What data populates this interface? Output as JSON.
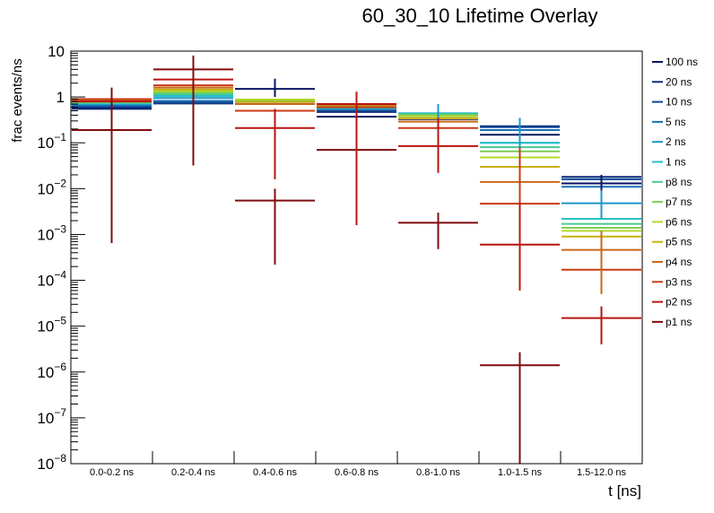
{
  "chart_data": {
    "type": "line",
    "title": "60_30_10 Lifetime Overlay",
    "xlabel": "t [ns]",
    "ylabel": "frac events/ns",
    "yscale": "log",
    "ylim": [
      1e-08,
      10
    ],
    "yticks": [
      {
        "base": "10",
        "exp": "-8",
        "v": 1e-08
      },
      {
        "base": "10",
        "exp": "-7",
        "v": 1e-07
      },
      {
        "base": "10",
        "exp": "-6",
        "v": 1e-06
      },
      {
        "base": "10",
        "exp": "-5",
        "v": 1e-05
      },
      {
        "base": "10",
        "exp": "-4",
        "v": 0.0001
      },
      {
        "base": "10",
        "exp": "-3",
        "v": 0.001
      },
      {
        "base": "10",
        "exp": "-2",
        "v": 0.01
      },
      {
        "base": "10",
        "exp": "-1",
        "v": 0.1
      },
      {
        "base": "1",
        "exp": "",
        "v": 1
      },
      {
        "base": "10",
        "exp": "",
        "v": 10
      }
    ],
    "categories": [
      "0.0-0.2 ns",
      "0.2-0.4 ns",
      "0.4-0.6 ns",
      "0.6-0.8 ns",
      "0.8-1.0 ns",
      "1.0-1.5 ns",
      "1.5-12.0 ns"
    ],
    "legend_position": "right",
    "series": [
      {
        "name": "100 ns",
        "color": "#0a1560",
        "values": [
          0.58,
          0.78,
          1.5,
          0.37,
          0.33,
          0.15,
          0.013
        ],
        "errors": [
          [
            0.58,
            0.58
          ],
          [
            0.78,
            0.78
          ],
          [
            1.5,
            2.5
          ],
          [
            0.37,
            0.37
          ],
          [
            0.33,
            0.33
          ],
          [
            0.15,
            0.15
          ],
          [
            0.013,
            0.013
          ]
        ]
      },
      {
        "name": "20 ns",
        "color": "#0d2a7a",
        "values": [
          0.55,
          0.72,
          0.78,
          0.47,
          0.38,
          0.23,
          0.018
        ],
        "errors": []
      },
      {
        "name": "10 ns",
        "color": "#0e4a96",
        "values": [
          0.62,
          0.75,
          0.8,
          0.5,
          0.4,
          0.22,
          0.016
        ],
        "errors": []
      },
      {
        "name": "5 ns",
        "color": "#1771b8",
        "values": [
          0.65,
          0.82,
          0.8,
          0.55,
          0.42,
          0.19,
          0.011
        ],
        "errors": []
      },
      {
        "name": "2 ns",
        "color": "#1a98c8",
        "values": [
          0.7,
          0.95,
          0.82,
          0.56,
          0.44,
          0.1,
          0.0048
        ],
        "errors": []
      },
      {
        "name": "1 ns",
        "color": "#25c0c8",
        "values": [
          0.72,
          1.05,
          0.83,
          0.58,
          0.44,
          0.1,
          0.0022
        ],
        "errors": []
      },
      {
        "name": "p8 ns",
        "color": "#4cc890",
        "values": [
          0.75,
          1.15,
          0.84,
          0.6,
          0.42,
          0.08,
          0.0017
        ],
        "errors": []
      },
      {
        "name": "p7 ns",
        "color": "#7ccc58",
        "values": [
          0.78,
          1.25,
          0.86,
          0.62,
          0.4,
          0.065,
          0.0014
        ],
        "errors": []
      },
      {
        "name": "p6 ns",
        "color": "#b0d828",
        "values": [
          0.8,
          1.35,
          0.88,
          0.64,
          0.38,
          0.048,
          0.0012
        ],
        "errors": []
      },
      {
        "name": "p5 ns",
        "color": "#c8b010",
        "values": [
          0.82,
          1.45,
          0.78,
          0.66,
          0.34,
          0.03,
          0.0009
        ],
        "errors": []
      },
      {
        "name": "p4 ns",
        "color": "#c86818",
        "values": [
          0.85,
          1.6,
          0.7,
          0.68,
          0.29,
          0.014,
          0.00046
        ],
        "errors": []
      },
      {
        "name": "p3 ns",
        "color": "#c83a14",
        "values": [
          0.9,
          1.8,
          0.5,
          0.6,
          0.21,
          0.0047,
          0.00017
        ],
        "errors": []
      },
      {
        "name": "p2 ns",
        "color": "#b81410",
        "values": [
          0.8,
          2.4,
          0.21,
          0.7,
          0.085,
          0.0006,
          1.5e-05
        ],
        "errors": []
      },
      {
        "name": "p1 ns",
        "color": "#800c0c",
        "values": [
          0.19,
          4.0,
          0.0055,
          0.07,
          0.0018,
          1.4e-06,
          null
        ],
        "errors": []
      }
    ],
    "error_bars": [
      {
        "series": "p1 ns",
        "bin": 0,
        "lo": 0.00065,
        "hi": 1.6
      },
      {
        "series": "p1 ns",
        "bin": 1,
        "lo": 0.032,
        "hi": 8.0
      },
      {
        "series": "p2 ns",
        "bin": 2,
        "lo": 0.016,
        "hi": 0.55
      },
      {
        "series": "p1 ns",
        "bin": 2,
        "lo": 0.00022,
        "hi": 0.01
      },
      {
        "series": "100 ns",
        "bin": 2,
        "lo": 1.0,
        "hi": 2.5
      },
      {
        "series": "p2 ns",
        "bin": 3,
        "lo": 0.0016,
        "hi": 1.3
      },
      {
        "series": "p2 ns",
        "bin": 4,
        "lo": 0.022,
        "hi": 0.6
      },
      {
        "series": "2 ns",
        "bin": 4,
        "lo": 0.35,
        "hi": 0.7
      },
      {
        "series": "p1 ns",
        "bin": 4,
        "lo": 0.00048,
        "hi": 0.003
      },
      {
        "series": "p3 ns",
        "bin": 5,
        "lo": 0.00045,
        "hi": 0.3
      },
      {
        "series": "2 ns",
        "bin": 5,
        "lo": 0.08,
        "hi": 0.35
      },
      {
        "series": "p2 ns",
        "bin": 5,
        "lo": 6e-05,
        "hi": 0.005
      },
      {
        "series": "p1 ns",
        "bin": 5,
        "lo": 1e-08,
        "hi": 2.7e-06
      },
      {
        "series": "100 ns",
        "bin": 6,
        "lo": 0.009,
        "hi": 0.02
      },
      {
        "series": "2 ns",
        "bin": 6,
        "lo": 0.0022,
        "hi": 0.009
      },
      {
        "series": "p4 ns",
        "bin": 6,
        "lo": 5e-05,
        "hi": 0.0012
      },
      {
        "series": "p2 ns",
        "bin": 6,
        "lo": 4e-06,
        "hi": 2.7e-05
      }
    ]
  }
}
